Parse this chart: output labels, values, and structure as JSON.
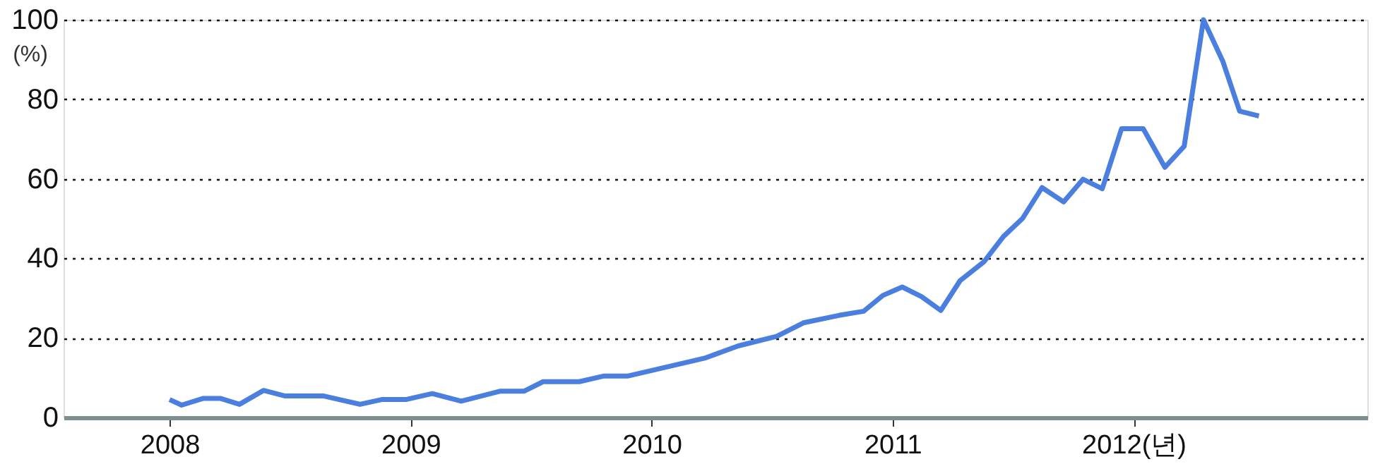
{
  "chart_data": {
    "type": "line",
    "ylabel": "(%)",
    "x": [
      2008.0,
      2008.05,
      2008.14,
      2008.21,
      2008.29,
      2008.39,
      2008.48,
      2008.64,
      2008.79,
      2008.88,
      2008.98,
      2009.09,
      2009.21,
      2009.37,
      2009.47,
      2009.55,
      2009.7,
      2009.8,
      2009.9,
      2010.22,
      2010.36,
      2010.52,
      2010.63,
      2010.78,
      2010.88,
      2010.96,
      2011.04,
      2011.12,
      2011.2,
      2011.28,
      2011.38,
      2011.46,
      2011.54,
      2011.62,
      2011.71,
      2011.79,
      2011.87,
      2011.95,
      2012.04,
      2012.13,
      2012.21,
      2012.29,
      2012.37,
      2012.44,
      2012.52
    ],
    "series": [
      {
        "color": "#4a7fe0",
        "values": [
          4.5,
          3.1,
          4.8,
          4.8,
          3.3,
          6.8,
          5.4,
          5.4,
          3.3,
          4.5,
          4.5,
          6.0,
          4.1,
          6.6,
          6.6,
          9.0,
          9.0,
          10.4,
          10.4,
          14.9,
          18.0,
          20.4,
          23.8,
          25.7,
          26.7,
          30.7,
          32.8,
          30.4,
          26.9,
          34.4,
          39.2,
          45.5,
          50.1,
          57.8,
          54.2,
          59.9,
          57.5,
          72.6,
          72.6,
          62.9,
          68.2,
          100,
          89.6,
          77.0,
          75.8
        ]
      }
    ],
    "xlim": [
      2007.56,
      2012.97
    ],
    "xticks": [
      2008,
      2009,
      2010,
      2011,
      {
        "value": 2012,
        "label": "2012(년)"
      }
    ],
    "ylim": [
      0,
      100
    ],
    "yticks": [
      0,
      20,
      40,
      60,
      80,
      100
    ],
    "grid": "y",
    "marker": "none",
    "line_style": "solid"
  }
}
